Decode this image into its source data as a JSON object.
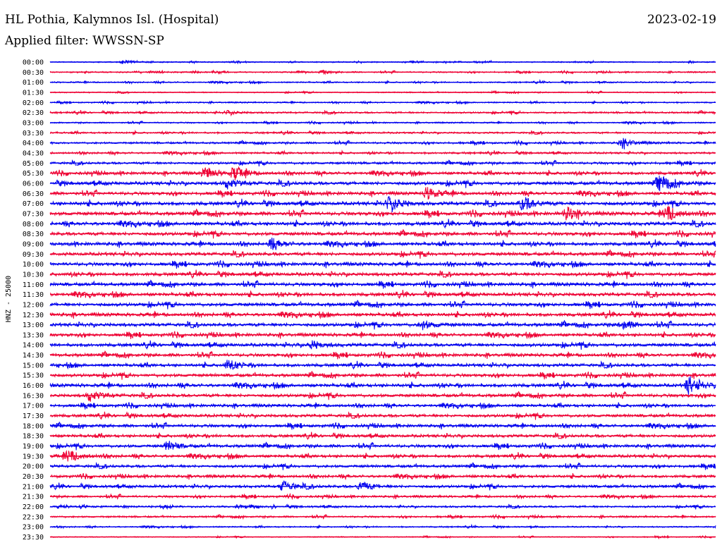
{
  "header": {
    "station": "HL Pothia, Kalymnos Isl. (Hospital)",
    "date": "2023-02-19",
    "filter_prefix": "Applied filter:",
    "filter": "WWSSN-SP"
  },
  "colors": {
    "even_trace": "#0000ee",
    "odd_trace": "#ee0033"
  },
  "chart_data": {
    "type": "helicorder",
    "ylabel": "HNZ - 25000",
    "row_labels": [
      "00:00",
      "00:30",
      "01:00",
      "01:30",
      "02:00",
      "02:30",
      "03:00",
      "03:30",
      "04:00",
      "04:30",
      "05:00",
      "05:30",
      "06:00",
      "06:30",
      "07:00",
      "07:30",
      "08:00",
      "08:30",
      "09:00",
      "09:30",
      "10:00",
      "10:30",
      "11:00",
      "11:30",
      "12:00",
      "12:30",
      "13:00",
      "13:30",
      "14:00",
      "14:30",
      "15:00",
      "15:30",
      "16:00",
      "16:30",
      "17:00",
      "17:30",
      "18:00",
      "18:30",
      "19:00",
      "19:30",
      "20:00",
      "20:30",
      "21:00",
      "21:30",
      "22:00",
      "22:30",
      "23:00",
      "23:30"
    ],
    "row_duration_minutes": 30,
    "trace_colors_alternate": [
      "blue",
      "red"
    ],
    "relative_noise_amplitude": [
      0.3,
      0.35,
      0.35,
      0.3,
      0.35,
      0.45,
      0.35,
      0.45,
      0.5,
      0.5,
      0.6,
      0.75,
      0.85,
      0.8,
      0.9,
      0.9,
      0.9,
      0.85,
      0.85,
      0.85,
      0.85,
      0.85,
      0.85,
      0.85,
      0.85,
      0.85,
      0.85,
      0.8,
      0.85,
      0.8,
      0.8,
      0.8,
      0.85,
      0.8,
      0.75,
      0.75,
      0.75,
      0.75,
      0.75,
      0.75,
      0.7,
      0.7,
      0.7,
      0.55,
      0.5,
      0.45,
      0.35,
      0.25
    ],
    "events": [
      {
        "row": "00:00",
        "minute": 3.3,
        "amp": 0.35
      },
      {
        "row": "00:30",
        "minute": 12.3,
        "amp": 0.35
      },
      {
        "row": "02:30",
        "minute": 8.0,
        "amp": 0.4
      },
      {
        "row": "04:00",
        "minute": 25.8,
        "amp": 1.1
      },
      {
        "row": "05:30",
        "minute": 7.0,
        "amp": 1.2
      },
      {
        "row": "05:30",
        "minute": 8.3,
        "amp": 1.4
      },
      {
        "row": "06:00",
        "minute": 8.0,
        "amp": 1.0
      },
      {
        "row": "06:00",
        "minute": 27.5,
        "amp": 1.6
      },
      {
        "row": "06:30",
        "minute": 17.0,
        "amp": 1.3
      },
      {
        "row": "07:00",
        "minute": 15.3,
        "amp": 1.7
      },
      {
        "row": "07:00",
        "minute": 21.3,
        "amp": 1.5
      },
      {
        "row": "07:30",
        "minute": 23.3,
        "amp": 1.3
      },
      {
        "row": "07:30",
        "minute": 27.8,
        "amp": 1.6
      },
      {
        "row": "09:00",
        "minute": 10.0,
        "amp": 1.0
      },
      {
        "row": "13:00",
        "minute": 16.8,
        "amp": 0.9
      },
      {
        "row": "13:00",
        "minute": 25.8,
        "amp": 0.9
      },
      {
        "row": "14:00",
        "minute": 11.8,
        "amp": 0.8
      },
      {
        "row": "15:00",
        "minute": 8.0,
        "amp": 1.0
      },
      {
        "row": "16:00",
        "minute": 28.8,
        "amp": 1.8
      },
      {
        "row": "16:30",
        "minute": 1.8,
        "amp": 1.1
      },
      {
        "row": "19:00",
        "minute": 5.3,
        "amp": 1.0
      },
      {
        "row": "19:30",
        "minute": 0.8,
        "amp": 1.3
      },
      {
        "row": "21:00",
        "minute": 10.5,
        "amp": 1.2
      },
      {
        "row": "21:00",
        "minute": 14.0,
        "amp": 1.0
      }
    ]
  }
}
